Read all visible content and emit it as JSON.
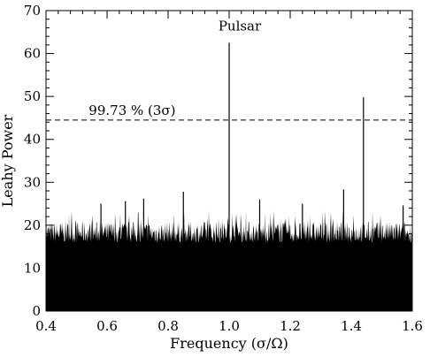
{
  "chart_data": {
    "type": "line",
    "xlabel": "Frequency (σ/Ω)",
    "ylabel": "Leahy Power",
    "xlim": [
      0.4,
      1.6
    ],
    "ylim": [
      0,
      70
    ],
    "x_ticks": [
      "0.4",
      "0.6",
      "0.8",
      "1.0",
      "1.2",
      "1.4",
      "1.6"
    ],
    "y_ticks": [
      "0",
      "10",
      "20",
      "30",
      "40",
      "50",
      "60",
      "70"
    ],
    "grid": false,
    "threshold": {
      "y": 44.5,
      "label": "99.73 % (3σ)",
      "style": "dashed"
    },
    "annotations": [
      {
        "text": "Pulsar",
        "x": 1.0,
        "y": 62.5
      }
    ],
    "noise_envelope": {
      "x_start": 0.4,
      "x_end": 1.6,
      "solid_floor": 16,
      "typical_max": 21
    },
    "peaks": [
      {
        "x": 1.0,
        "y": 62.5
      },
      {
        "x": 1.44,
        "y": 49.8
      },
      {
        "x": 0.85,
        "y": 27.8
      },
      {
        "x": 1.375,
        "y": 28.3
      },
      {
        "x": 0.58,
        "y": 25.0
      },
      {
        "x": 0.66,
        "y": 25.6
      },
      {
        "x": 0.72,
        "y": 26.2
      },
      {
        "x": 1.1,
        "y": 26.0
      },
      {
        "x": 1.24,
        "y": 25.0
      },
      {
        "x": 1.57,
        "y": 24.6
      }
    ]
  }
}
